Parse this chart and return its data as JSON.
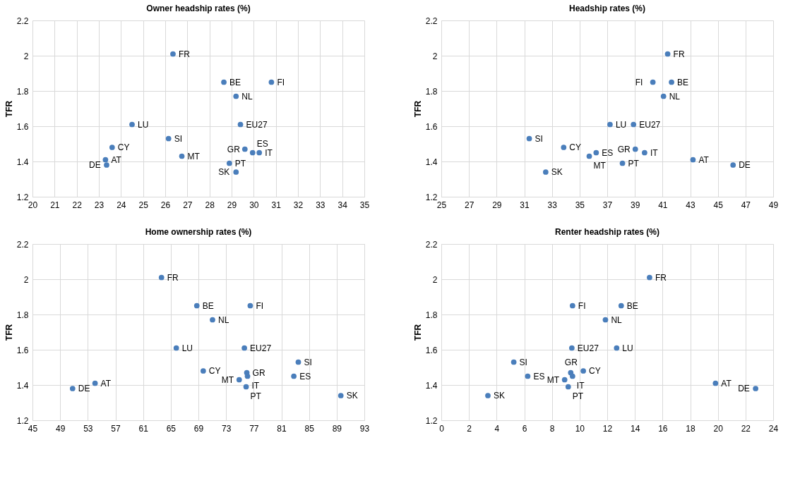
{
  "chart_data": [
    {
      "type": "scatter",
      "title": "Owner headship rates (%)",
      "ylabel": "TFR",
      "xlim": [
        20,
        35
      ],
      "xticks": [
        20,
        21,
        22,
        23,
        24,
        25,
        26,
        27,
        28,
        29,
        30,
        31,
        32,
        33,
        34,
        35
      ],
      "ylim": [
        1.2,
        2.2
      ],
      "yticks": [
        1.2,
        1.4,
        1.6,
        1.8,
        2,
        2.2
      ],
      "grid": true,
      "marker": "circle",
      "series": [
        {
          "color": "#4a7ebb",
          "x": [
            26.35,
            28.65,
            30.8,
            29.2,
            24.5,
            29.4,
            26.15,
            23.6,
            23.3,
            23.35,
            26.75,
            29.6,
            30.25,
            29.95,
            28.9,
            29.2
          ],
          "values": [
            2.01,
            1.85,
            1.85,
            1.77,
            1.61,
            1.61,
            1.53,
            1.48,
            1.41,
            1.38,
            1.43,
            1.47,
            1.45,
            1.45,
            1.39,
            1.34
          ],
          "value_labels": [
            "FR",
            "BE",
            "FI",
            "NL",
            "LU",
            "EU27",
            "SI",
            "CY",
            "AT",
            "DE",
            "MT",
            "GR",
            "IT",
            "ES",
            "PT",
            "SK"
          ]
        }
      ]
    },
    {
      "type": "scatter",
      "title": "Headship rates (%)",
      "ylabel": "TFR",
      "xlim": [
        25,
        49
      ],
      "xticks": [
        25,
        27,
        29,
        31,
        33,
        35,
        37,
        39,
        41,
        43,
        45,
        47,
        49
      ],
      "ylim": [
        1.2,
        2.2
      ],
      "yticks": [
        1.2,
        1.4,
        1.6,
        1.8,
        2,
        2.2
      ],
      "grid": true,
      "marker": "circle",
      "series": [
        {
          "color": "#4a7ebb",
          "x": [
            41.37,
            41.65,
            40.3,
            41.07,
            37.2,
            38.9,
            31.36,
            33.85,
            43.2,
            46.1,
            35.7,
            39.03,
            39.7,
            36.2,
            38.1,
            32.55
          ],
          "values": [
            2.01,
            1.85,
            1.85,
            1.77,
            1.61,
            1.61,
            1.53,
            1.48,
            1.41,
            1.38,
            1.43,
            1.47,
            1.45,
            1.45,
            1.39,
            1.34
          ],
          "value_labels": [
            "FR",
            "BE",
            "FI",
            "NL",
            "LU",
            "EU27",
            "SI",
            "CY",
            "AT",
            "DE",
            "MT",
            "GR",
            "IT",
            "ES",
            "PT",
            "SK"
          ]
        }
      ]
    },
    {
      "type": "scatter",
      "title": "Home ownership rates (%)",
      "ylabel": "TFR",
      "xlim": [
        45,
        93
      ],
      "xticks": [
        45,
        49,
        53,
        57,
        61,
        65,
        69,
        73,
        77,
        81,
        85,
        89,
        93
      ],
      "ylim": [
        1.2,
        2.2
      ],
      "yticks": [
        1.2,
        1.4,
        1.6,
        1.8,
        2,
        2.2
      ],
      "grid": true,
      "marker": "circle",
      "series": [
        {
          "color": "#4a7ebb",
          "x": [
            63.66,
            68.77,
            76.5,
            71.04,
            65.8,
            75.65,
            83.45,
            69.7,
            54.05,
            50.8,
            74.9,
            76.0,
            76.1,
            82.8,
            75.9,
            89.6
          ],
          "values": [
            2.01,
            1.85,
            1.85,
            1.77,
            1.61,
            1.61,
            1.53,
            1.48,
            1.41,
            1.38,
            1.43,
            1.47,
            1.45,
            1.45,
            1.39,
            1.34
          ],
          "value_labels": [
            "FR",
            "BE",
            "FI",
            "NL",
            "LU",
            "EU27",
            "SI",
            "CY",
            "AT",
            "DE",
            "MT",
            "GR",
            "IT",
            "ES",
            "PT",
            "SK"
          ]
        }
      ]
    },
    {
      "type": "scatter",
      "title": "Renter headship rates (%)",
      "ylabel": "TFR",
      "xlim": [
        0,
        24
      ],
      "xticks": [
        0,
        2,
        4,
        6,
        8,
        10,
        12,
        14,
        16,
        18,
        20,
        22,
        24
      ],
      "ylim": [
        1.2,
        2.2
      ],
      "yticks": [
        1.2,
        1.4,
        1.6,
        1.8,
        2,
        2.2
      ],
      "grid": true,
      "marker": "circle",
      "series": [
        {
          "color": "#4a7ebb",
          "x": [
            15.06,
            13.01,
            9.49,
            11.87,
            12.68,
            9.44,
            5.24,
            10.27,
            19.83,
            22.73,
            8.92,
            9.36,
            9.49,
            6.25,
            9.18,
            3.37
          ],
          "values": [
            2.01,
            1.85,
            1.85,
            1.77,
            1.61,
            1.61,
            1.53,
            1.48,
            1.41,
            1.38,
            1.43,
            1.47,
            1.45,
            1.45,
            1.39,
            1.34
          ],
          "value_labels": [
            "FR",
            "BE",
            "FI",
            "NL",
            "LU",
            "EU27",
            "SI",
            "CY",
            "AT",
            "DE",
            "MT",
            "GR",
            "IT",
            "ES",
            "PT",
            "SK"
          ]
        }
      ]
    }
  ]
}
